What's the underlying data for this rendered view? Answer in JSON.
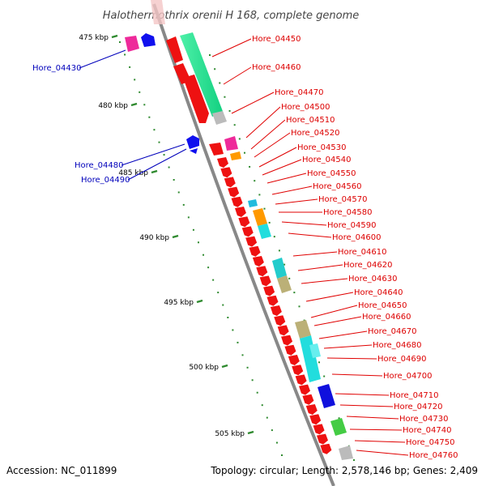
{
  "title": "Halothermothrix orenii H 168, complete genome",
  "accession": "Accession: NC_011899",
  "topology": "Topology: circular; Length: 2,578,146 bp; Genes: 2,409",
  "colors": {
    "forward_label": "#dd0000",
    "reverse_label": "#0000bb",
    "backbone": "#888888",
    "tick": "#2f8a2f",
    "gene_red": "#ee1111",
    "gene_blue": "#1010ee",
    "gene_magenta": "#ee2a9a"
  },
  "ruler": [
    {
      "label": "475 kbp"
    },
    {
      "label": "480 kbp"
    },
    {
      "label": "485 kbp"
    },
    {
      "label": "490 kbp"
    },
    {
      "label": "495 kbp"
    },
    {
      "label": "500 kbp"
    },
    {
      "label": "505 kbp"
    }
  ],
  "reverse_genes": [
    {
      "label": "Hore_04430"
    },
    {
      "label": "Hore_04480"
    },
    {
      "label": "Hore_04490"
    }
  ],
  "forward_genes": [
    {
      "label": "Hore_04450"
    },
    {
      "label": "Hore_04460"
    },
    {
      "label": "Hore_04470"
    },
    {
      "label": "Hore_04500"
    },
    {
      "label": "Hore_04510"
    },
    {
      "label": "Hore_04520"
    },
    {
      "label": "Hore_04530"
    },
    {
      "label": "Hore_04540"
    },
    {
      "label": "Hore_04550"
    },
    {
      "label": "Hore_04560"
    },
    {
      "label": "Hore_04570"
    },
    {
      "label": "Hore_04580"
    },
    {
      "label": "Hore_04590"
    },
    {
      "label": "Hore_04600"
    },
    {
      "label": "Hore_04610"
    },
    {
      "label": "Hore_04620"
    },
    {
      "label": "Hore_04630"
    },
    {
      "label": "Hore_04640"
    },
    {
      "label": "Hore_04650"
    },
    {
      "label": "Hore_04660"
    },
    {
      "label": "Hore_04670"
    },
    {
      "label": "Hore_04680"
    },
    {
      "label": "Hore_04690"
    },
    {
      "label": "Hore_04700"
    },
    {
      "label": "Hore_04710"
    },
    {
      "label": "Hore_04720"
    },
    {
      "label": "Hore_04730"
    },
    {
      "label": "Hore_04740"
    },
    {
      "label": "Hore_04750"
    },
    {
      "label": "Hore_04760"
    }
  ]
}
